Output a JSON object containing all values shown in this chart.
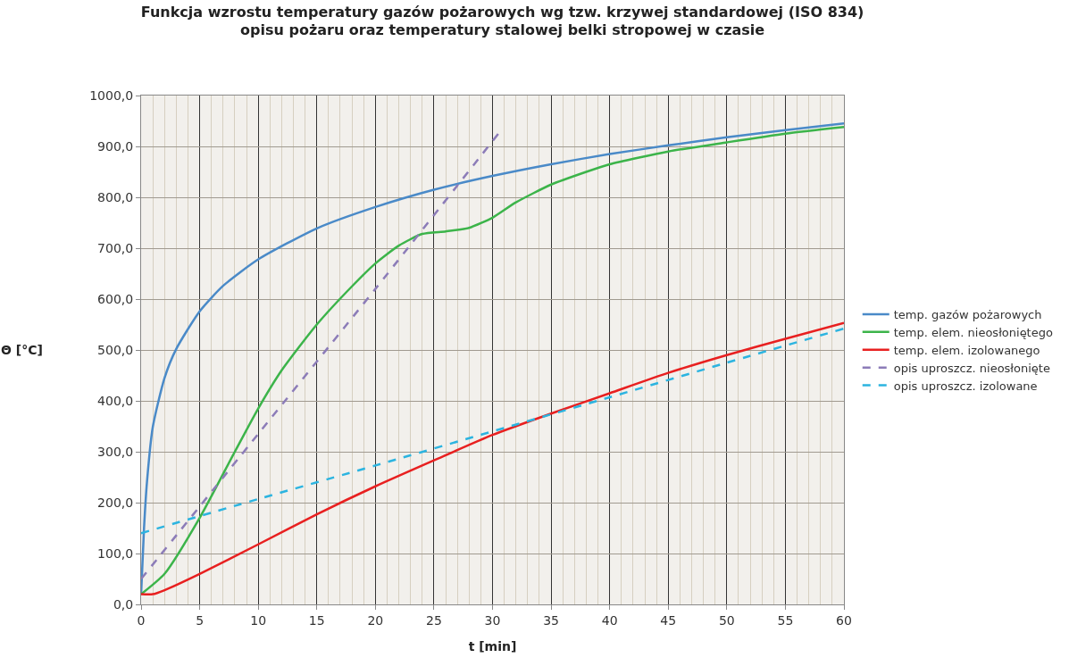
{
  "chart_data": {
    "type": "line",
    "title": "Funkcja wzrostu temperatury gazów pożarowych wg tzw. krzywej standardowej (ISO 834)\nopisu pożaru oraz temperatury stalowej belki stropowej w czasie",
    "xlabel": "t [min]",
    "ylabel": "Θ [°C]",
    "xlim": [
      0,
      60
    ],
    "xticks": [
      0,
      5,
      10,
      15,
      20,
      25,
      30,
      35,
      40,
      45,
      50,
      55,
      60
    ],
    "ylim": [
      0,
      1000
    ],
    "yticks": [
      {
        "value": 0,
        "label": "0,0"
      },
      {
        "value": 100,
        "label": "100,0"
      },
      {
        "value": 200,
        "label": "200,0"
      },
      {
        "value": 300,
        "label": "300,0"
      },
      {
        "value": 400,
        "label": "400,0"
      },
      {
        "value": 500,
        "label": "500,0"
      },
      {
        "value": 600,
        "label": "600,0"
      },
      {
        "value": 700,
        "label": "700,0"
      },
      {
        "value": 800,
        "label": "800,0"
      },
      {
        "value": 900,
        "label": "900,0"
      },
      {
        "value": 1000,
        "label": "1000,0"
      }
    ],
    "grid": true,
    "legend": "right",
    "marker": "none",
    "series": [
      {
        "name": "temp. gazów pożarowych",
        "color": "#4a8ac8",
        "line_style": "solid",
        "x": [
          0,
          0.25,
          0.5,
          1,
          2,
          3,
          5,
          7,
          10,
          15,
          20,
          25,
          30,
          35,
          40,
          45,
          50,
          55,
          60
        ],
        "values": [
          20,
          150,
          240,
          349,
          445,
          502,
          576,
          626,
          678,
          739,
          781,
          815,
          842,
          865,
          885,
          902,
          918,
          932,
          945
        ]
      },
      {
        "name": "temp. elem. nieosłoniętego",
        "color": "#3cb44a",
        "line_style": "solid",
        "x": [
          0,
          2,
          5,
          8,
          10,
          12,
          15,
          18,
          20,
          22,
          24,
          26,
          28,
          30,
          32,
          35,
          38,
          40,
          45,
          50,
          55,
          60
        ],
        "values": [
          20,
          60,
          170,
          300,
          385,
          460,
          550,
          625,
          670,
          705,
          728,
          733,
          740,
          760,
          790,
          825,
          850,
          865,
          890,
          908,
          925,
          938
        ]
      },
      {
        "name": "temp. elem. izolowanego",
        "color": "#e82020",
        "line_style": "solid",
        "x": [
          0,
          1,
          2,
          5,
          10,
          15,
          20,
          25,
          30,
          35,
          40,
          45,
          50,
          55,
          60
        ],
        "values": [
          20,
          20,
          28,
          60,
          118,
          177,
          232,
          283,
          333,
          375,
          415,
          455,
          490,
          522,
          553
        ]
      },
      {
        "name": "opis uproszcz. nieosłonięte",
        "color": "#8c7cb8",
        "line_style": "dashed",
        "x": [
          0,
          10,
          20,
          30.5
        ],
        "values": [
          50,
          335,
          620,
          925
        ]
      },
      {
        "name": "opis uproszcz. izolowane",
        "color": "#2cb4e0",
        "line_style": "dashed",
        "x": [
          0,
          10,
          20,
          30,
          40,
          50,
          60
        ],
        "values": [
          140,
          207,
          273,
          340,
          407,
          475,
          542
        ]
      }
    ]
  }
}
